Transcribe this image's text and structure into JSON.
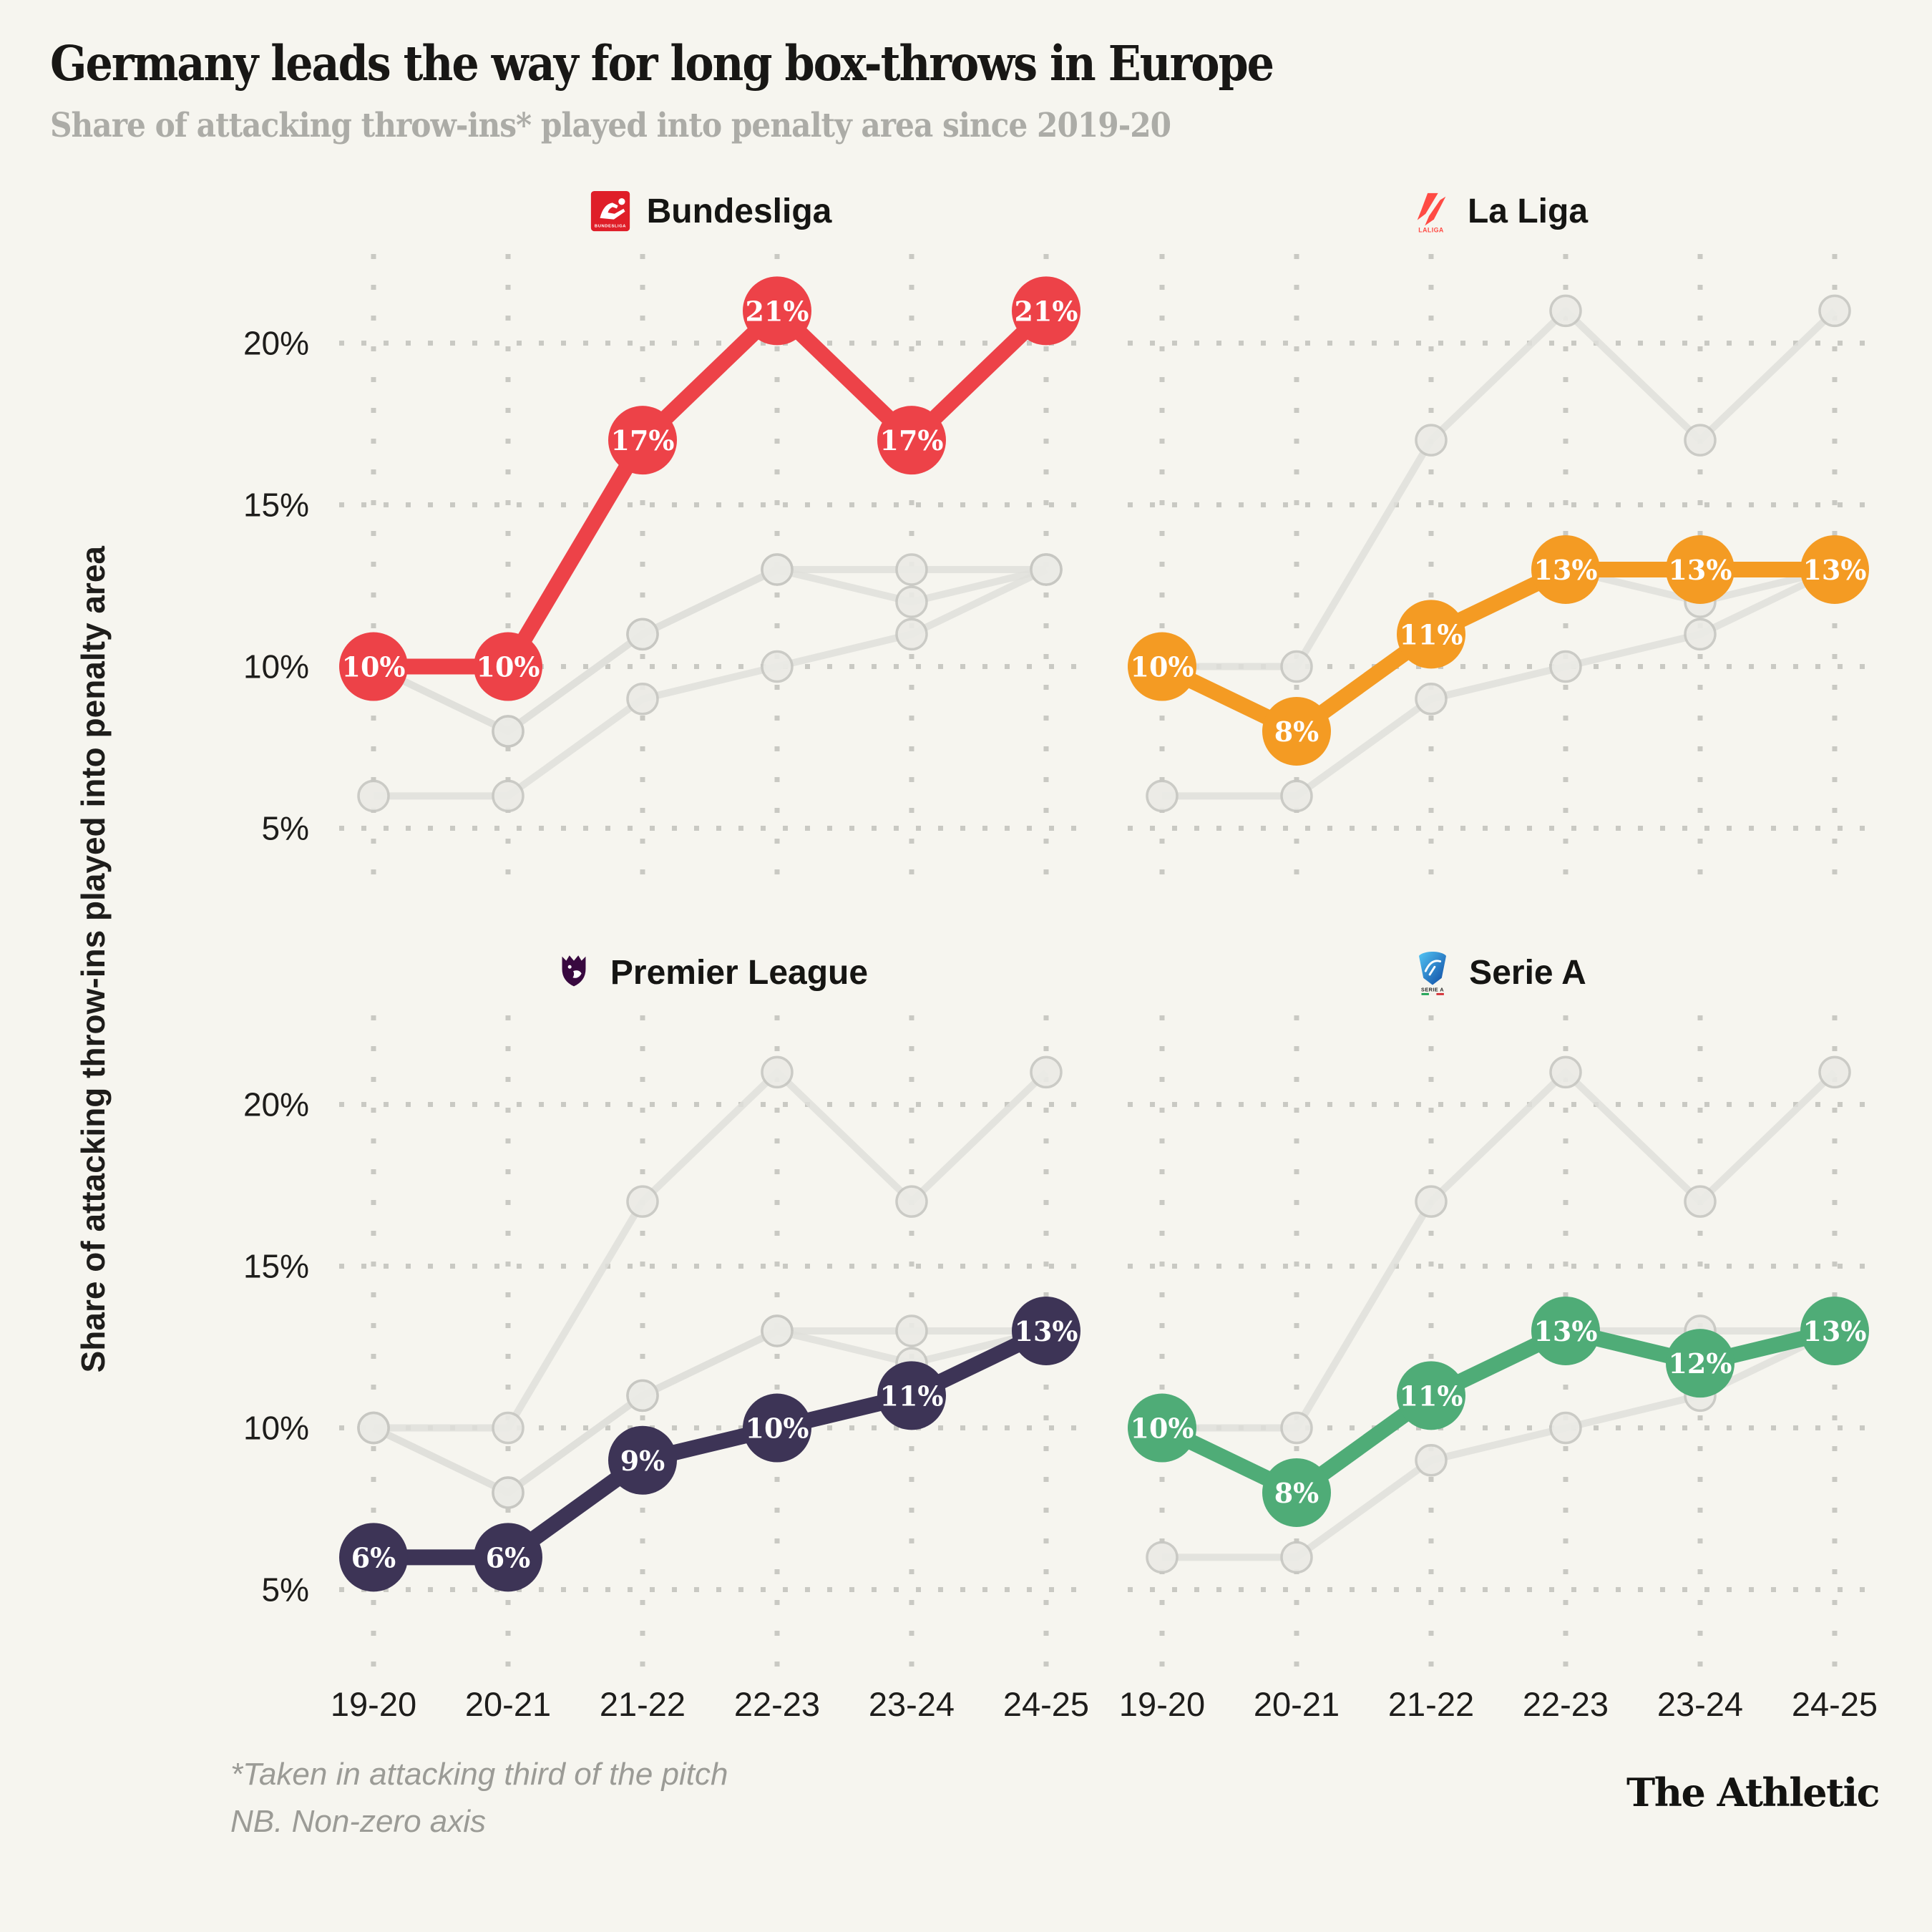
{
  "header": {
    "title": "Germany leads the way for long box-throws in Europe",
    "subtitle": "Share of attacking throw-ins* played into penalty area since 2019-20"
  },
  "chart_data": {
    "type": "line",
    "layout": "2x2 small multiples, shared axes, legend-free",
    "x": [
      "19-20",
      "20-21",
      "21-22",
      "22-23",
      "23-24",
      "24-25"
    ],
    "ylabel": "Share of attacking throw-ins played into penalty area",
    "yticks": [
      5,
      10,
      15,
      20
    ],
    "ylim": [
      3.2,
      22.8
    ],
    "unit": "%",
    "grid": "dotted horizontal and vertical gridlines",
    "background_series": "each panel repeats all four leagues; the three non-focus leagues are drawn in light gray",
    "panels": [
      {
        "league": "Bundesliga",
        "color": "#ED4248",
        "values": [
          10,
          10,
          17,
          21,
          17,
          21
        ]
      },
      {
        "league": "La Liga",
        "color": "#F49B23",
        "values": [
          10,
          8,
          11,
          13,
          13,
          13
        ]
      },
      {
        "league": "Premier League",
        "color": "#3D3456",
        "values": [
          6,
          6,
          9,
          10,
          11,
          13
        ]
      },
      {
        "league": "Serie A",
        "color": "#4FAC77",
        "values": [
          10,
          8,
          11,
          13,
          12,
          13
        ]
      }
    ]
  },
  "colors": {
    "background": "#F6F5EF",
    "grid_dots": "#C9C9C3",
    "gray_series_line": "#DFDFDA",
    "gray_marker_fill": "#EBEBE6",
    "gray_marker_ring": "#C7C7C2",
    "marker_label_text": "#FFFFFF",
    "tick_text": "#1E1D1B",
    "subtitle_text": "#ACACA7"
  },
  "footer": {
    "notes": [
      "*Taken in attacking third of the pitch",
      "NB. Non-zero axis"
    ],
    "branding": "The Athletic"
  }
}
